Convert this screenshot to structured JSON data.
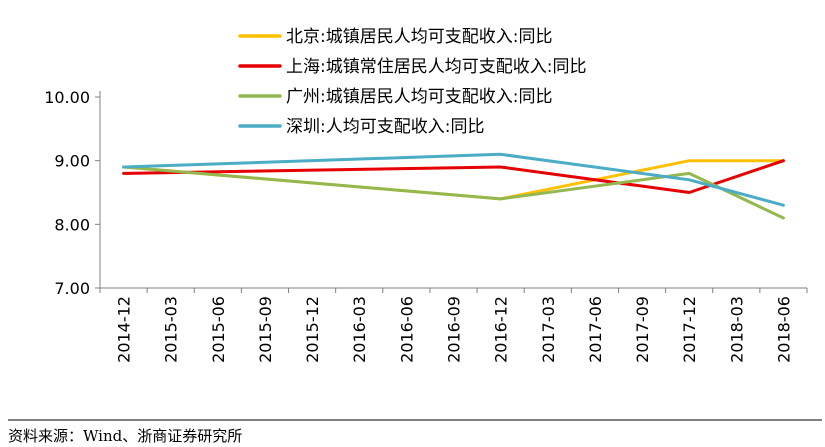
{
  "chart_data": {
    "type": "line",
    "title": "",
    "xlabel": "",
    "ylabel": "",
    "categories": [
      "2014-12",
      "2015-03",
      "2015-06",
      "2015-09",
      "2015-12",
      "2016-03",
      "2016-06",
      "2016-09",
      "2016-12",
      "2017-03",
      "2017-06",
      "2017-09",
      "2017-12",
      "2018-03",
      "2018-06"
    ],
    "y_tick_labels": [
      "7.00",
      "8.00",
      "9.00",
      "10.00"
    ],
    "ylim": [
      7,
      10
    ],
    "grid": false,
    "legend_position": "top",
    "series": [
      {
        "name": "北京:城镇居民人均可支配收入:同比",
        "color": "#FFC000",
        "points": [
          {
            "x": "2014-12",
            "y": 8.9
          },
          {
            "x": "2016-12",
            "y": 8.4
          },
          {
            "x": "2017-12",
            "y": 9.0
          },
          {
            "x": "2018-06",
            "y": 9.0
          }
        ]
      },
      {
        "name": "上海:城镇常住居民人均可支配收入:同比",
        "color": "#E60000",
        "points": [
          {
            "x": "2014-12",
            "y": 8.8
          },
          {
            "x": "2016-12",
            "y": 8.9
          },
          {
            "x": "2017-12",
            "y": 8.5
          },
          {
            "x": "2018-06",
            "y": 9.0
          }
        ]
      },
      {
        "name": "广州:城镇居民人均可支配收入:同比",
        "color": "#92B84F",
        "points": [
          {
            "x": "2014-12",
            "y": 8.9
          },
          {
            "x": "2016-12",
            "y": 8.4
          },
          {
            "x": "2017-12",
            "y": 8.8
          },
          {
            "x": "2018-06",
            "y": 8.1
          }
        ]
      },
      {
        "name": "深圳:人均可支配收入:同比",
        "color": "#4BACC6",
        "points": [
          {
            "x": "2014-12",
            "y": 8.9
          },
          {
            "x": "2016-12",
            "y": 9.1
          },
          {
            "x": "2017-12",
            "y": 8.7
          },
          {
            "x": "2018-06",
            "y": 8.3
          }
        ]
      }
    ]
  },
  "source_note": "资料来源：Wind、浙商证券研究所"
}
